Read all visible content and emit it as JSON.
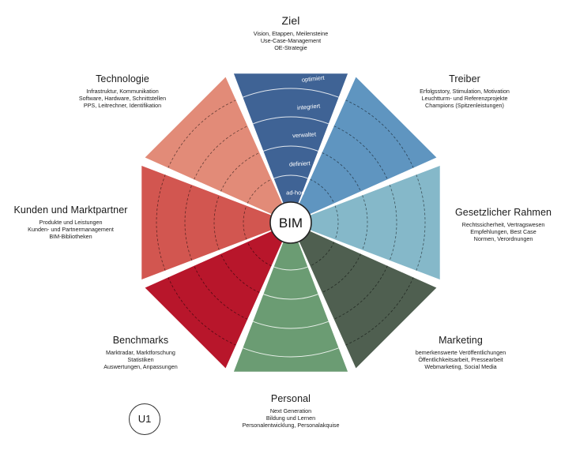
{
  "center_label": "BIM",
  "badge": "U1",
  "levels": [
    "ad-hoc",
    "definiert",
    "verwaltet",
    "integriert",
    "optimiert"
  ],
  "segments": [
    {
      "title": "Ziel",
      "color": "#3f6395",
      "lines": [
        "Vision, Etappen, Meilensteine",
        "Use-Case-Management",
        "OE-Strategie"
      ]
    },
    {
      "title": "Treiber",
      "color": "#5f95c0",
      "lines": [
        "Erfolgsstory, Stimulation, Motivation",
        "Leuchtturm- und Referenzprojekte",
        "Champions (Spitzenleistungen)"
      ]
    },
    {
      "title": "Gesetzlicher Rahmen",
      "color": "#85b8c9",
      "lines": [
        "Rechtssicherheit, Vertragswesen",
        "Empfehlungen, Best Case",
        "Normen, Verordnungen"
      ]
    },
    {
      "title": "Marketing",
      "color": "#4f5f50",
      "lines": [
        "bemerkenswerte Veröffentlichungen",
        "Öffentlichkeitsarbeit, Pressearbeit",
        "Webmarketing, Social Media"
      ]
    },
    {
      "title": "Personal",
      "color": "#6b9c73",
      "lines": [
        "Next Generation",
        "Bildung und Lernen",
        "Personalentwicklung, Personalakquise"
      ]
    },
    {
      "title": "Benchmarks",
      "color": "#b8162b",
      "lines": [
        "Marktradar, Marktforschung",
        "Statistiken",
        "Auswertungen, Anpassungen"
      ]
    },
    {
      "title": "Kunden und Marktpartner",
      "color": "#d25650",
      "lines": [
        "Produkte und Leistungen",
        "Kunden- und Partnermanagement",
        "BIM-Bibliotheken"
      ]
    },
    {
      "title": "Technologie",
      "color": "#e28b78",
      "lines": [
        "Infrastruktur, Kommunikation",
        "Software, Hardware, Schnittstellen",
        "PPS, Leitrechner, Identifikation"
      ]
    }
  ]
}
